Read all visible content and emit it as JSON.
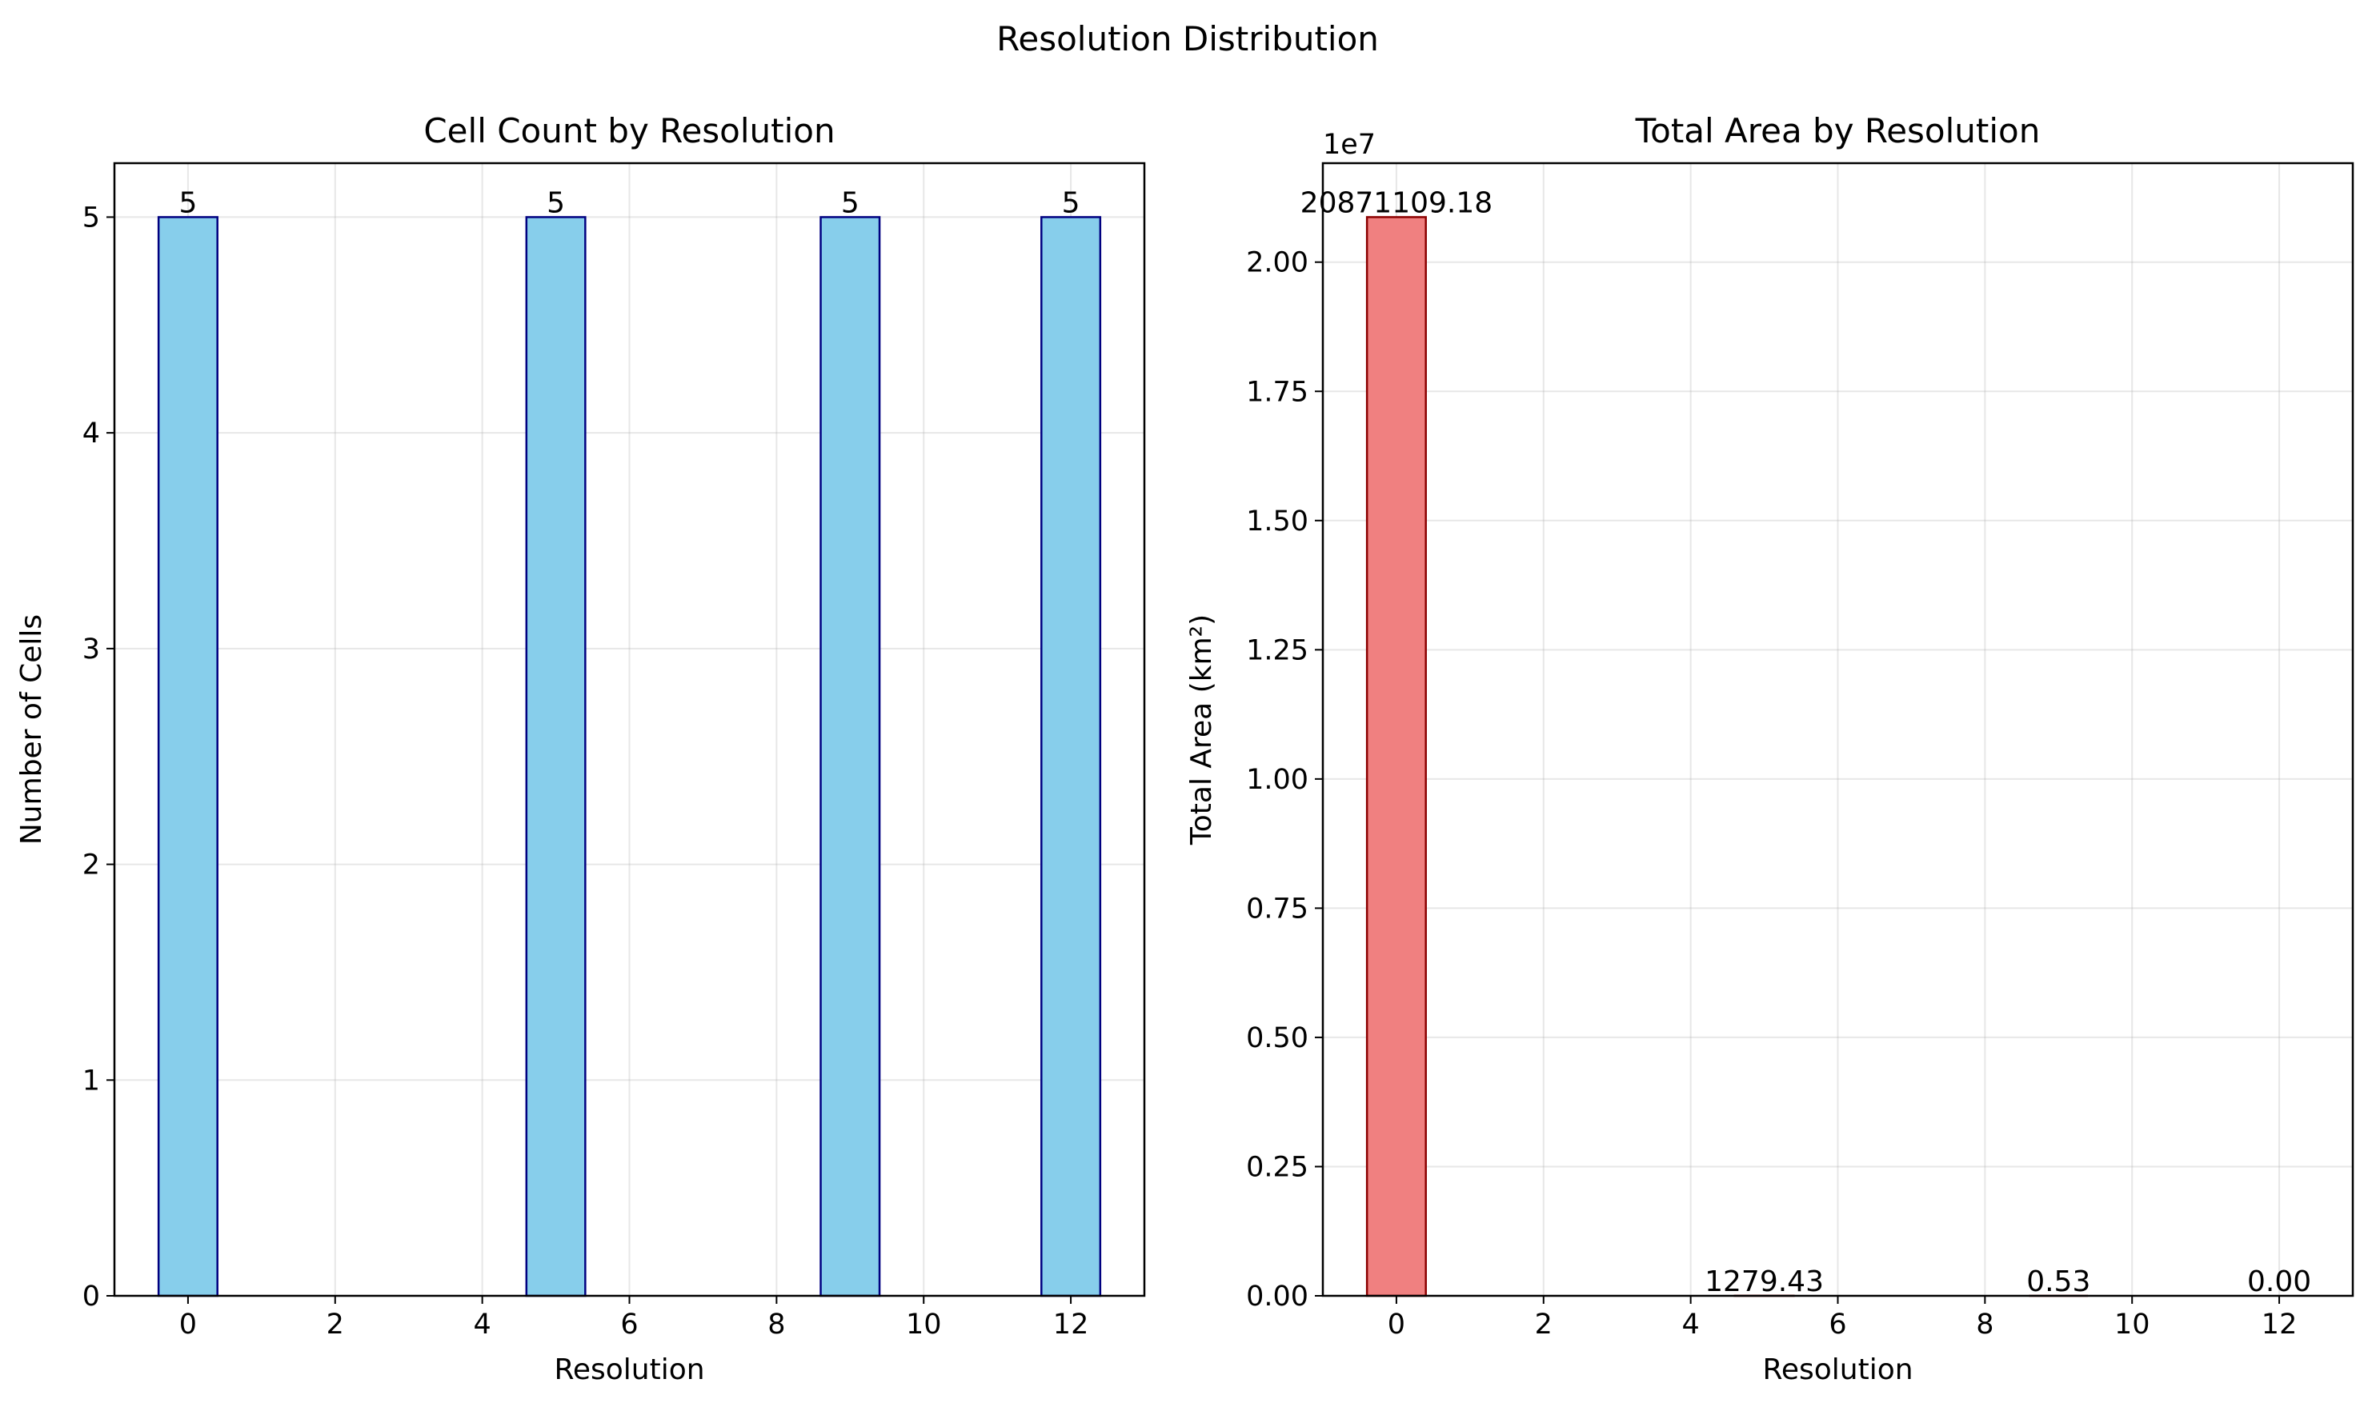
{
  "figure": {
    "suptitle": "Resolution Distribution"
  },
  "chart_data": [
    {
      "type": "bar",
      "title": "Cell Count by Resolution",
      "xlabel": "Resolution",
      "ylabel": "Number of Cells",
      "x": [
        0,
        5,
        9,
        12
      ],
      "values": [
        5,
        5,
        5,
        5
      ],
      "value_labels": [
        "5",
        "5",
        "5",
        "5"
      ],
      "bar_width": 0.8,
      "xlim": [
        -1,
        13
      ],
      "ylim": [
        0,
        5.25
      ],
      "xticks": [
        0,
        2,
        4,
        6,
        8,
        10,
        12
      ],
      "xtick_labels": [
        "0",
        "2",
        "4",
        "6",
        "8",
        "10",
        "12"
      ],
      "yticks": [
        0,
        1,
        2,
        3,
        4,
        5
      ],
      "ytick_labels": [
        "0",
        "1",
        "2",
        "3",
        "4",
        "5"
      ],
      "offset_text": "",
      "grid": true,
      "bar_color": "#87ceeb",
      "edge_color": "#000080"
    },
    {
      "type": "bar",
      "title": "Total Area by Resolution",
      "xlabel": "Resolution",
      "ylabel": "Total Area (km²)",
      "x": [
        0,
        5,
        9,
        12
      ],
      "values": [
        20871109.18,
        1279.43,
        0.53,
        0.0
      ],
      "value_labels": [
        "20871109.18",
        "1279.43",
        "0.53",
        "0.00"
      ],
      "bar_width": 0.8,
      "xlim": [
        -1,
        13
      ],
      "ylim": [
        0,
        21914664.64
      ],
      "xticks": [
        0,
        2,
        4,
        6,
        8,
        10,
        12
      ],
      "xtick_labels": [
        "0",
        "2",
        "4",
        "6",
        "8",
        "10",
        "12"
      ],
      "yticks": [
        0,
        2500000,
        5000000,
        7500000,
        10000000,
        12500000,
        15000000,
        17500000,
        20000000
      ],
      "ytick_labels": [
        "0.00",
        "0.25",
        "0.50",
        "0.75",
        "1.00",
        "1.25",
        "1.50",
        "1.75",
        "2.00"
      ],
      "offset_text": "1e7",
      "grid": true,
      "bar_color": "#f08080",
      "edge_color": "#8b0000"
    }
  ]
}
